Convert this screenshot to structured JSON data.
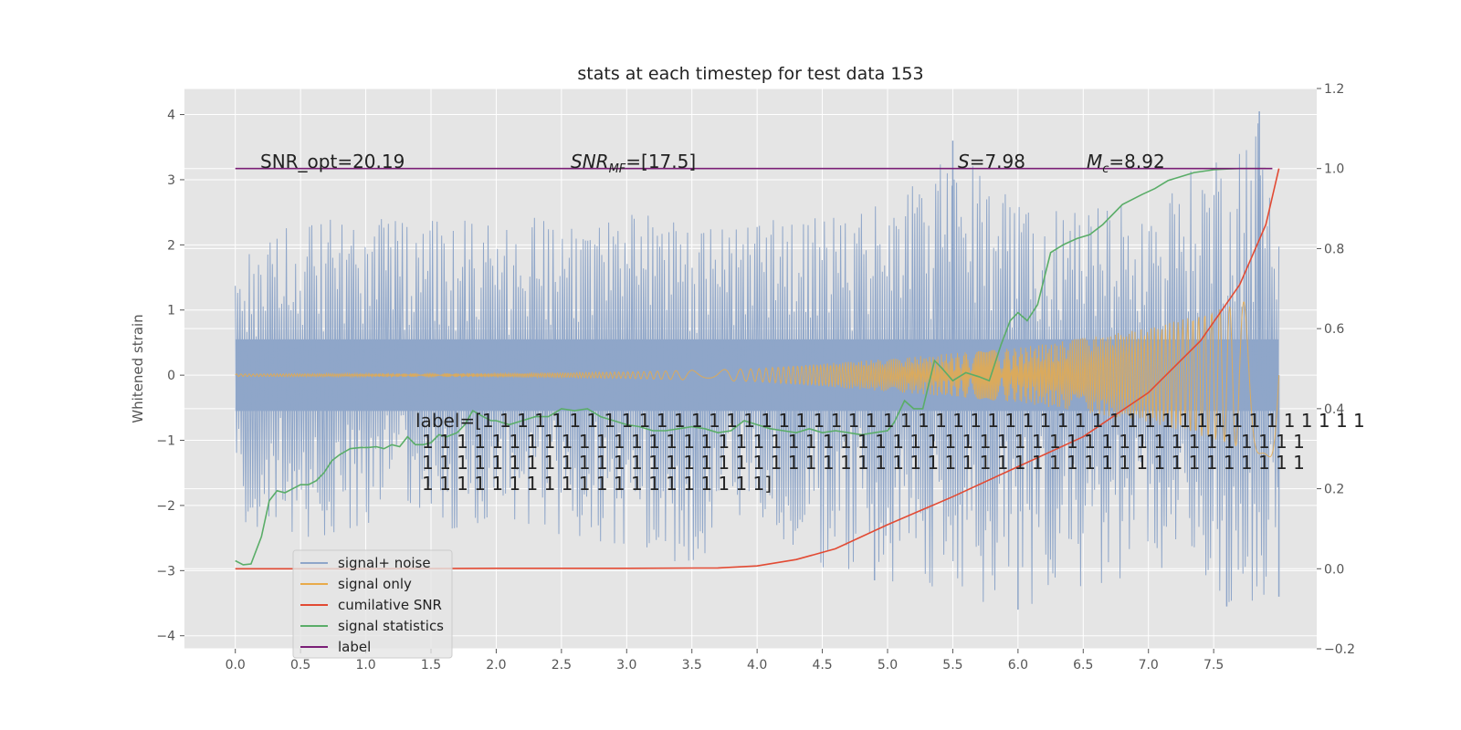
{
  "chart_data": {
    "type": "line",
    "title": "stats at each timestep for test data 153",
    "ylabel": "Whitened strain",
    "xlim": [
      -0.39,
      8.29
    ],
    "ylim": [
      -4.2,
      4.4
    ],
    "y2lim": [
      -0.2,
      1.2
    ],
    "x_ticks": [
      "0.0",
      "0.5",
      "1.0",
      "1.5",
      "2.0",
      "2.5",
      "3.0",
      "3.5",
      "4.0",
      "4.5",
      "5.0",
      "5.5",
      "6.0",
      "6.5",
      "7.0",
      "7.5"
    ],
    "y_ticks": [
      "4",
      "3",
      "2",
      "1",
      "0",
      "−1",
      "−2",
      "−3",
      "−4"
    ],
    "y2_ticks": [
      "1.2",
      "1.0",
      "0.8",
      "0.6",
      "0.4",
      "0.2",
      "0.0",
      "−0.2"
    ],
    "grid": true,
    "legend_position": "lower-left",
    "annotations": {
      "snr_opt": "SNR_opt=20.19",
      "snr_mf_base": "SNR",
      "snr_mf_sub": "MF",
      "snr_mf_rest": "=[17.5]",
      "s_var": "S",
      "s_rest": "=7.98",
      "mc_var": "M",
      "mc_sub": "c",
      "mc_rest": "=8.92",
      "label_lines": [
        "label=[1 1 1 1 1 1 1 1 1 1 1 1 1 1 1 1 1 1 1 1 1 1 1 1 1 1 1 1 1 1 1 1 1 1 1 1 1 1 1 1 1 1 1 1 1 1 1 1 1 1 1",
        "1 1 1 1 1 1 1 1 1 1 1 1 1 1 1 1 1 1 1 1 1 1 1 1 1 1 1 1 1 1 1 1 1 1 1 1 1 1 1 1 1 1 1 1 1 1 1 1 1 1 1",
        "1 1 1 1 1 1 1 1 1 1 1 1 1 1 1 1 1 1 1 1 1 1 1 1 1 1 1 1 1 1 1 1 1 1 1 1 1 1 1 1 1 1 1 1 1 1 1 1 1 1 1",
        "1 1 1 1 1 1 1 1 1 1 1 1 1 1 1 1 1 1 1 1]"
      ]
    },
    "series": [
      {
        "name": "signal+ noise",
        "color": "#8fa6c9",
        "axis": "left",
        "x_range": [
          0,
          8.0
        ],
        "envelope_upper": [
          [
            0.0,
            1.8
          ],
          [
            0.5,
            2.4
          ],
          [
            1.0,
            2.5
          ],
          [
            2.0,
            2.4
          ],
          [
            3.0,
            2.5
          ],
          [
            4.0,
            2.5
          ],
          [
            5.0,
            2.6
          ],
          [
            5.5,
            3.6
          ],
          [
            6.0,
            2.6
          ],
          [
            7.0,
            2.6
          ],
          [
            7.85,
            4.05
          ],
          [
            8.0,
            2.3
          ]
        ],
        "envelope_lower": [
          [
            0.0,
            -2.2
          ],
          [
            0.5,
            -2.6
          ],
          [
            1.0,
            -2.3
          ],
          [
            2.0,
            -2.4
          ],
          [
            3.0,
            -2.6
          ],
          [
            3.5,
            -2.95
          ],
          [
            4.0,
            -2.7
          ],
          [
            4.9,
            -3.15
          ],
          [
            6.0,
            -3.6
          ],
          [
            7.0,
            -3.0
          ],
          [
            7.6,
            -3.55
          ],
          [
            8.0,
            -3.4
          ]
        ]
      },
      {
        "name": "signal only",
        "color": "#e8aa4a",
        "axis": "left",
        "x_range": [
          0,
          8.0
        ],
        "amplitude": [
          [
            0.0,
            0.02
          ],
          [
            2.0,
            0.03
          ],
          [
            3.0,
            0.05
          ],
          [
            4.0,
            0.1
          ],
          [
            5.0,
            0.25
          ],
          [
            6.0,
            0.42
          ],
          [
            7.0,
            0.72
          ],
          [
            7.5,
            0.98
          ],
          [
            8.0,
            1.3
          ]
        ]
      },
      {
        "name": "cumilative SNR",
        "color": "#e24a33",
        "axis": "right",
        "x": [
          0.0,
          1.0,
          2.0,
          3.0,
          3.7,
          4.0,
          4.3,
          4.6,
          5.0,
          5.5,
          6.0,
          6.5,
          7.0,
          7.4,
          7.7,
          7.9,
          8.0
        ],
        "y": [
          0.0,
          0.0,
          0.001,
          0.001,
          0.002,
          0.007,
          0.023,
          0.05,
          0.11,
          0.18,
          0.255,
          0.33,
          0.44,
          0.57,
          0.71,
          0.86,
          1.0
        ]
      },
      {
        "name": "signal statistics",
        "color": "#5aad68",
        "axis": "right",
        "x": [
          0.0,
          0.06,
          0.12,
          0.2,
          0.26,
          0.32,
          0.38,
          0.44,
          0.5,
          0.56,
          0.62,
          0.68,
          0.74,
          0.8,
          0.88,
          0.96,
          1.02,
          1.08,
          1.14,
          1.2,
          1.26,
          1.32,
          1.38,
          1.44,
          1.5,
          1.56,
          1.62,
          1.7,
          1.76,
          1.82,
          1.9,
          1.96,
          2.0,
          2.1,
          2.2,
          2.3,
          2.4,
          2.5,
          2.6,
          2.7,
          2.8,
          2.9,
          3.0,
          3.1,
          3.2,
          3.3,
          3.4,
          3.5,
          3.6,
          3.7,
          3.8,
          3.9,
          4.0,
          4.1,
          4.2,
          4.3,
          4.4,
          4.5,
          4.6,
          4.7,
          4.8,
          4.9,
          5.0,
          5.05,
          5.13,
          5.2,
          5.27,
          5.36,
          5.42,
          5.5,
          5.6,
          5.7,
          5.78,
          5.87,
          5.94,
          6.0,
          6.07,
          6.15,
          6.25,
          6.35,
          6.45,
          6.55,
          6.65,
          6.8,
          6.95,
          7.05,
          7.15,
          7.25,
          7.35,
          7.5,
          7.6,
          7.7,
          7.8,
          7.9
        ],
        "y": [
          0.02,
          0.01,
          0.012,
          0.08,
          0.17,
          0.195,
          0.19,
          0.2,
          0.21,
          0.21,
          0.22,
          0.24,
          0.27,
          0.285,
          0.3,
          0.303,
          0.303,
          0.305,
          0.3,
          0.31,
          0.305,
          0.33,
          0.31,
          0.31,
          0.315,
          0.335,
          0.33,
          0.34,
          0.36,
          0.395,
          0.38,
          0.37,
          0.37,
          0.36,
          0.37,
          0.38,
          0.38,
          0.4,
          0.395,
          0.4,
          0.38,
          0.37,
          0.36,
          0.355,
          0.345,
          0.345,
          0.35,
          0.355,
          0.35,
          0.34,
          0.345,
          0.37,
          0.36,
          0.35,
          0.345,
          0.34,
          0.35,
          0.34,
          0.345,
          0.34,
          0.335,
          0.34,
          0.345,
          0.365,
          0.42,
          0.4,
          0.4,
          0.52,
          0.5,
          0.47,
          0.49,
          0.48,
          0.47,
          0.56,
          0.62,
          0.64,
          0.62,
          0.66,
          0.79,
          0.81,
          0.825,
          0.835,
          0.86,
          0.91,
          0.935,
          0.95,
          0.97,
          0.98,
          0.99,
          0.997,
          0.999,
          1.0,
          1.0,
          1.0
        ]
      },
      {
        "name": "label",
        "color": "#7a1e76",
        "axis": "right",
        "x": [
          0.0,
          7.95
        ],
        "y": [
          1.0,
          1.0
        ]
      }
    ],
    "legend": {
      "items": [
        {
          "label": "signal+ noise",
          "color": "#8fa6c9"
        },
        {
          "label": "signal only",
          "color": "#e8aa4a"
        },
        {
          "label": "cumilative SNR",
          "color": "#e24a33"
        },
        {
          "label": "signal statistics",
          "color": "#5aad68"
        },
        {
          "label": "label",
          "color": "#7a1e76"
        }
      ]
    }
  }
}
